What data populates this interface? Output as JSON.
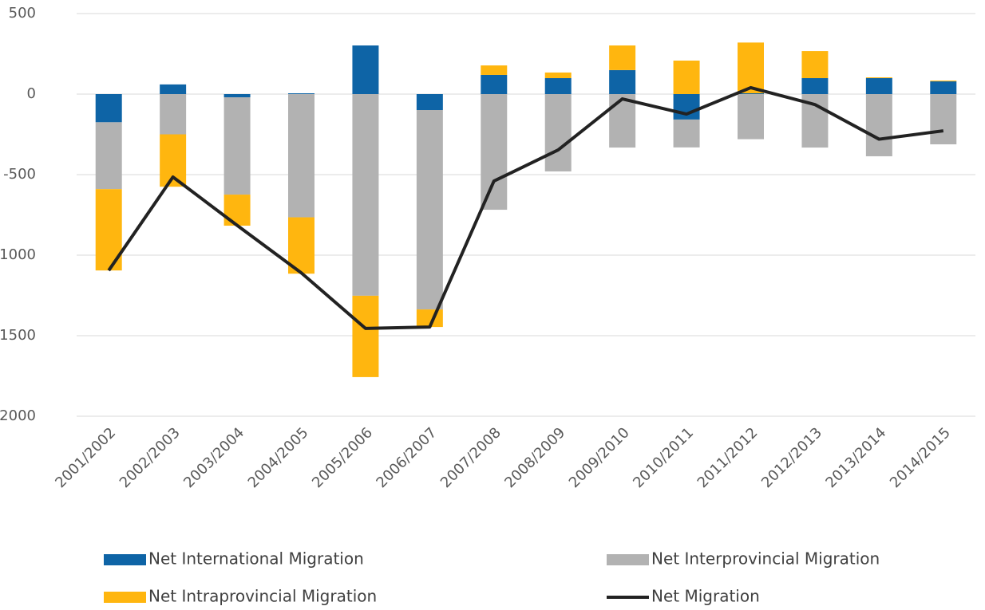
{
  "chart_data": {
    "type": "bar_line",
    "categories": [
      "2001/2002",
      "2002/2003",
      "2003/2004",
      "2004/2005",
      "2005/2006",
      "2006/2007",
      "2007/2008",
      "2008/2009",
      "2009/2010",
      "2010/2011",
      "2011/2012",
      "2012/2013",
      "2013/2014",
      "2014/2015"
    ],
    "series": [
      {
        "name": "Net International Migration",
        "color": "#0e64a6",
        "kind": "bar",
        "values": [
          -175,
          60,
          -20,
          5,
          302,
          -99,
          119,
          99,
          149,
          -158,
          5,
          99,
          99,
          79
        ]
      },
      {
        "name": "Net Interprovincial Migration",
        "color": "#b2b2b2",
        "kind": "bar",
        "values": [
          -415,
          -250,
          -604,
          -765,
          -1252,
          -1238,
          -718,
          -480,
          -332,
          -173,
          -280,
          -332,
          -386,
          -312
        ]
      },
      {
        "name": "Net Intraprovincial Migration",
        "color": "#ffb60f",
        "kind": "bar",
        "values": [
          -505,
          -325,
          -193,
          -350,
          -505,
          -109,
          59,
          35,
          153,
          208,
          315,
          168,
          5,
          5
        ]
      },
      {
        "name": "Net Migration",
        "color": "#222222",
        "kind": "line",
        "values": [
          -1095,
          -515,
          -815,
          -1110,
          -1455,
          -1446,
          -540,
          -347,
          -30,
          -124,
          40,
          -65,
          -280,
          -228
        ]
      }
    ],
    "ylim": [
      -2000,
      500
    ],
    "yticks": [
      -2000,
      -1500,
      -1000,
      -500,
      0,
      500
    ],
    "grid": true
  }
}
